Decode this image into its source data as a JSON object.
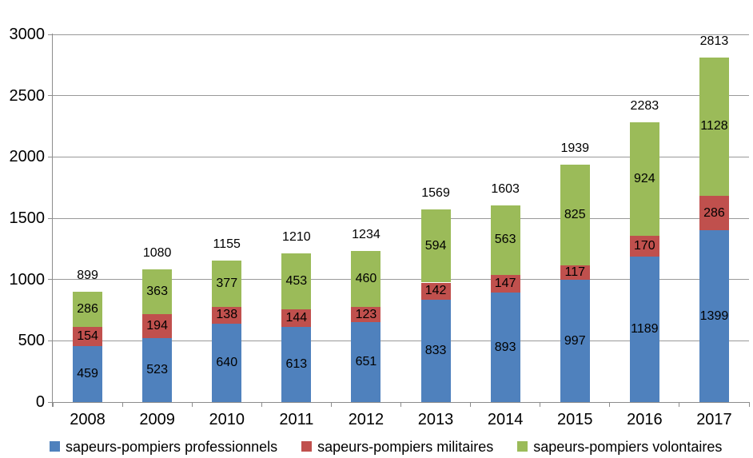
{
  "chart_data": {
    "type": "bar",
    "stacked": true,
    "title": "",
    "xlabel": "",
    "ylabel": "",
    "categories": [
      "2008",
      "2009",
      "2010",
      "2011",
      "2012",
      "2013",
      "2014",
      "2015",
      "2016",
      "2017"
    ],
    "series": [
      {
        "name": "sapeurs-pompiers professionnels",
        "color": "#4F81BD",
        "values": [
          459,
          523,
          640,
          613,
          651,
          833,
          893,
          997,
          1189,
          1399
        ]
      },
      {
        "name": "sapeurs-pompiers militaires",
        "color": "#C0504D",
        "values": [
          154,
          194,
          138,
          144,
          123,
          142,
          147,
          117,
          170,
          286
        ]
      },
      {
        "name": "sapeurs-pompiers volontaires",
        "color": "#9BBB59",
        "values": [
          286,
          363,
          377,
          453,
          460,
          594,
          563,
          825,
          924,
          1128
        ]
      }
    ],
    "totals": [
      899,
      1080,
      1155,
      1210,
      1234,
      1569,
      1603,
      1939,
      2283,
      2813
    ],
    "ylim": [
      0,
      3000
    ],
    "yticks": [
      0,
      500,
      1000,
      1500,
      2000,
      2500,
      3000
    ],
    "grid": true,
    "legend_position": "bottom",
    "data_labels": "center",
    "total_labels": "outside-end"
  },
  "colors": {
    "background": "#FFFFFF",
    "gridline": "#999999",
    "axis": "#8C8C8C",
    "text": "#000000"
  }
}
